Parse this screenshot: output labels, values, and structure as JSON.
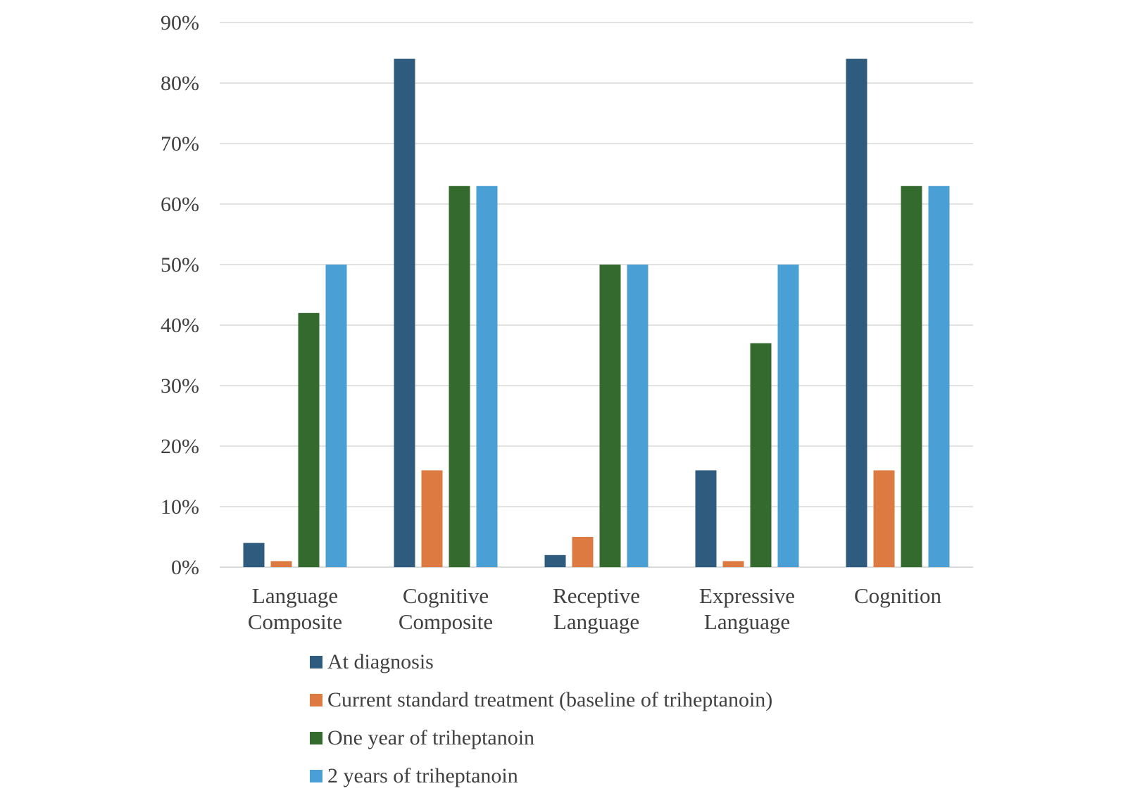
{
  "chart_data": {
    "type": "bar",
    "title": "",
    "xlabel": "",
    "ylabel": "",
    "ylim": [
      0,
      90
    ],
    "yticks": [
      "0%",
      "10%",
      "20%",
      "30%",
      "40%",
      "50%",
      "60%",
      "70%",
      "80%",
      "90%"
    ],
    "grid": true,
    "legend_position": "bottom",
    "categories": [
      [
        "Language",
        "Composite"
      ],
      [
        "Cognitive",
        "Composite"
      ],
      [
        "Receptive",
        "Language"
      ],
      [
        "Expressive",
        "Language"
      ],
      [
        "Cognition"
      ]
    ],
    "series": [
      {
        "name": "At diagnosis",
        "color": "#2e5b7e",
        "values": [
          4,
          84,
          2,
          16,
          84
        ]
      },
      {
        "name": "Current standard treatment (baseline of triheptanoin)",
        "color": "#dd7a42",
        "values": [
          1,
          16,
          5,
          1,
          16
        ]
      },
      {
        "name": "One year of triheptanoin",
        "color": "#356a2e",
        "values": [
          42,
          63,
          50,
          37,
          63
        ]
      },
      {
        "name": "2 years of triheptanoin",
        "color": "#4a9fd4",
        "values": [
          50,
          63,
          50,
          50,
          63
        ]
      }
    ]
  }
}
